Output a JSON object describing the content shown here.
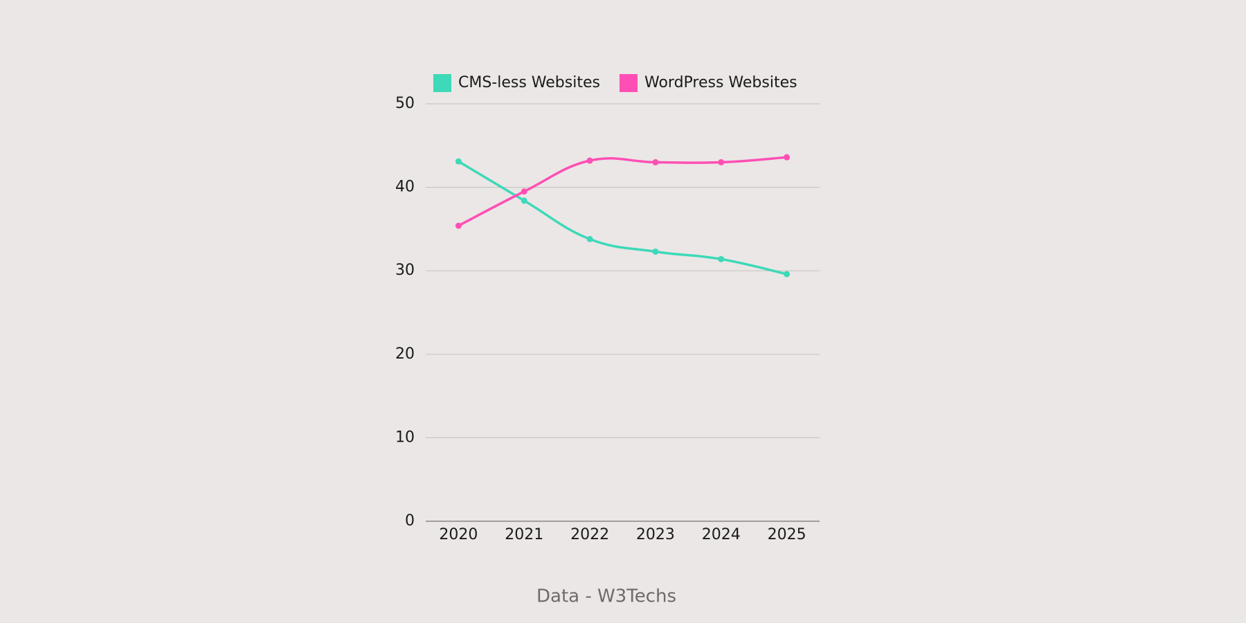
{
  "chart_data": {
    "type": "line",
    "categories": [
      "2020",
      "2021",
      "2022",
      "2023",
      "2024",
      "2025"
    ],
    "series": [
      {
        "name": "CMS-less Websites",
        "color": "#3dd9b8",
        "values": [
          43.1,
          38.4,
          33.8,
          32.3,
          31.4,
          29.6
        ]
      },
      {
        "name": "WordPress Websites",
        "color": "#ff4fb4",
        "values": [
          35.4,
          39.5,
          43.2,
          43.0,
          43.0,
          43.6
        ]
      }
    ],
    "ylim": [
      0,
      50
    ],
    "yticks": [
      0,
      10,
      20,
      30,
      40,
      50
    ],
    "grid": true,
    "smooth": true,
    "legend": "top",
    "caption": "Data - W3Techs"
  }
}
